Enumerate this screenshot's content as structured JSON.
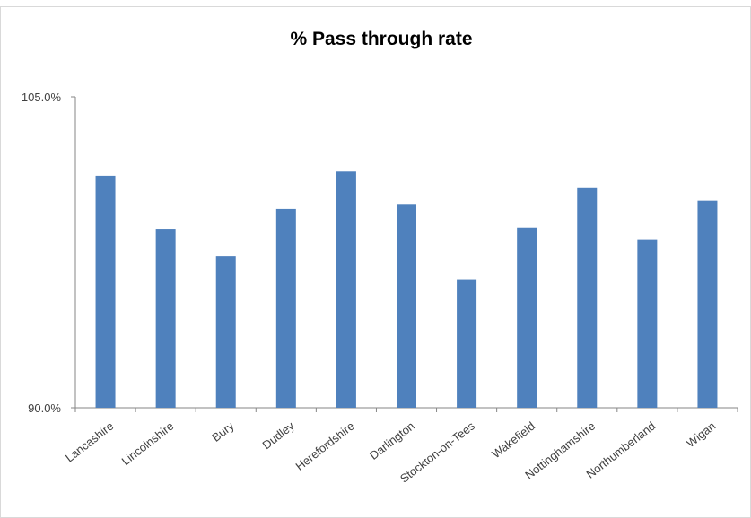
{
  "chart_data": {
    "type": "bar",
    "title": "% Pass through rate",
    "xlabel": "",
    "ylabel": "",
    "categories": [
      "Lancashire",
      "Lincolnshire",
      "Bury",
      "Dudley",
      "Herefordshire",
      "Darlington",
      "Stockton-on-Tees",
      "Wakefield",
      "Nottinghamshire",
      "Northumberland",
      "Wigan"
    ],
    "values": [
      101.2,
      98.6,
      97.3,
      99.6,
      101.4,
      99.8,
      96.2,
      98.7,
      100.6,
      98.1,
      100.0
    ],
    "ylim": [
      90,
      105
    ],
    "y_ticks": [
      "105.0%",
      "90.0%"
    ],
    "y_tick_values": [
      105,
      90
    ],
    "grid": false,
    "legend": "none",
    "bar_color": "#4F81BD",
    "axis_color": "#868686"
  }
}
